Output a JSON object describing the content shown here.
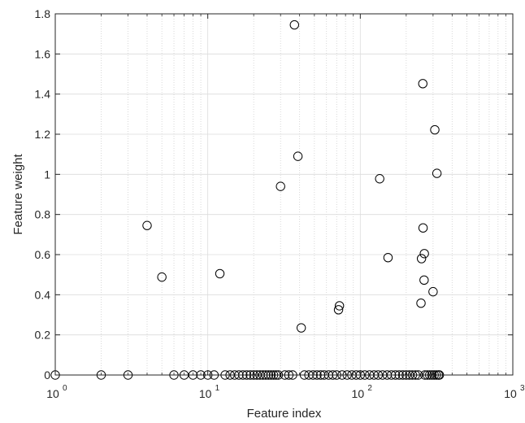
{
  "chart_data": {
    "type": "scatter",
    "title": "",
    "xlabel": "Feature index",
    "ylabel": "Feature weight",
    "xscale": "log",
    "xlim": [
      1,
      1000
    ],
    "ylim": [
      0,
      1.8
    ],
    "grid": true,
    "x_ticks": [
      {
        "base": "10",
        "exp": "0"
      },
      {
        "base": "10",
        "exp": "1"
      },
      {
        "base": "10",
        "exp": "2"
      },
      {
        "base": "10",
        "exp": "3"
      }
    ],
    "y_ticks": [
      "0",
      "0.2",
      "0.4",
      "0.6",
      "0.8",
      "1",
      "1.2",
      "1.4",
      "1.6",
      "1.8"
    ],
    "marker": "open-circle",
    "marker_color": "#000000",
    "points": [
      {
        "x": 1,
        "y": 0
      },
      {
        "x": 2,
        "y": 0
      },
      {
        "x": 3,
        "y": 0
      },
      {
        "x": 4,
        "y": 0.745
      },
      {
        "x": 5,
        "y": 0.488
      },
      {
        "x": 6,
        "y": 0
      },
      {
        "x": 7,
        "y": 0
      },
      {
        "x": 8,
        "y": 0
      },
      {
        "x": 9,
        "y": 0
      },
      {
        "x": 10,
        "y": 0
      },
      {
        "x": 11,
        "y": 0
      },
      {
        "x": 12,
        "y": 0.505
      },
      {
        "x": 13,
        "y": 0
      },
      {
        "x": 14,
        "y": 0
      },
      {
        "x": 15,
        "y": 0
      },
      {
        "x": 16,
        "y": 0
      },
      {
        "x": 17,
        "y": 0
      },
      {
        "x": 18,
        "y": 0
      },
      {
        "x": 19,
        "y": 0
      },
      {
        "x": 20,
        "y": 0
      },
      {
        "x": 21,
        "y": 0
      },
      {
        "x": 22,
        "y": 0
      },
      {
        "x": 23,
        "y": 0
      },
      {
        "x": 24,
        "y": 0
      },
      {
        "x": 25,
        "y": 0
      },
      {
        "x": 26,
        "y": 0
      },
      {
        "x": 27,
        "y": 0
      },
      {
        "x": 28,
        "y": 0
      },
      {
        "x": 29,
        "y": 0
      },
      {
        "x": 30,
        "y": 0.94
      },
      {
        "x": 32,
        "y": 0
      },
      {
        "x": 34,
        "y": 0
      },
      {
        "x": 36,
        "y": 0
      },
      {
        "x": 37,
        "y": 1.745
      },
      {
        "x": 39,
        "y": 1.09
      },
      {
        "x": 41,
        "y": 0.235
      },
      {
        "x": 43,
        "y": 0
      },
      {
        "x": 46,
        "y": 0
      },
      {
        "x": 49,
        "y": 0
      },
      {
        "x": 52,
        "y": 0
      },
      {
        "x": 55,
        "y": 0
      },
      {
        "x": 58,
        "y": 0
      },
      {
        "x": 62,
        "y": 0
      },
      {
        "x": 66,
        "y": 0
      },
      {
        "x": 70,
        "y": 0
      },
      {
        "x": 72,
        "y": 0.325
      },
      {
        "x": 73,
        "y": 0.345
      },
      {
        "x": 76,
        "y": 0
      },
      {
        "x": 82,
        "y": 0
      },
      {
        "x": 88,
        "y": 0
      },
      {
        "x": 94,
        "y": 0
      },
      {
        "x": 100,
        "y": 0
      },
      {
        "x": 107,
        "y": 0
      },
      {
        "x": 115,
        "y": 0
      },
      {
        "x": 123,
        "y": 0
      },
      {
        "x": 131,
        "y": 0
      },
      {
        "x": 134,
        "y": 0.978
      },
      {
        "x": 140,
        "y": 0
      },
      {
        "x": 150,
        "y": 0
      },
      {
        "x": 152,
        "y": 0.585
      },
      {
        "x": 160,
        "y": 0
      },
      {
        "x": 170,
        "y": 0
      },
      {
        "x": 180,
        "y": 0
      },
      {
        "x": 190,
        "y": 0
      },
      {
        "x": 200,
        "y": 0
      },
      {
        "x": 210,
        "y": 0
      },
      {
        "x": 220,
        "y": 0
      },
      {
        "x": 230,
        "y": 0
      },
      {
        "x": 240,
        "y": 0
      },
      {
        "x": 250,
        "y": 0.358
      },
      {
        "x": 252,
        "y": 0.58
      },
      {
        "x": 257,
        "y": 1.452
      },
      {
        "x": 258,
        "y": 0.733
      },
      {
        "x": 262,
        "y": 0.473
      },
      {
        "x": 263,
        "y": 0.605
      },
      {
        "x": 265,
        "y": 0
      },
      {
        "x": 275,
        "y": 0
      },
      {
        "x": 285,
        "y": 0
      },
      {
        "x": 295,
        "y": 0
      },
      {
        "x": 300,
        "y": 0.415
      },
      {
        "x": 305,
        "y": 0
      },
      {
        "x": 308,
        "y": 1.222
      },
      {
        "x": 315,
        "y": 0
      },
      {
        "x": 318,
        "y": 1.005
      },
      {
        "x": 325,
        "y": 0
      },
      {
        "x": 330,
        "y": 0
      }
    ]
  }
}
